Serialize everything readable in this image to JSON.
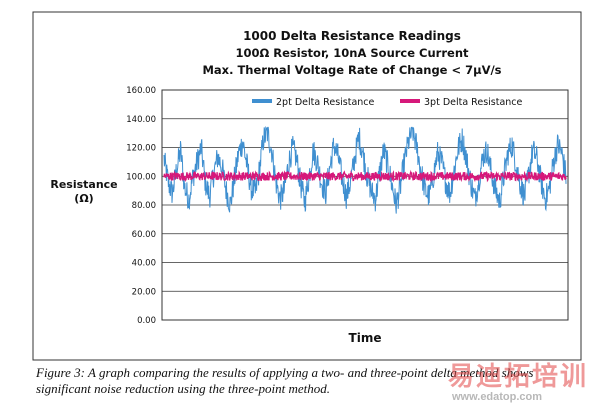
{
  "chart_data": {
    "type": "line",
    "title": "1000 Delta Resistance Readings",
    "subtitle_line1": "100Ω Resistor, 10nA Source Current",
    "subtitle_line2": "Max. Thermal Voltage Rate of Change < 7µV/s",
    "ylabel": "Resistance",
    "ylabel_unit": "(Ω)",
    "xlabel": "Time",
    "ylim": [
      0,
      160
    ],
    "yticks": [
      "0.00",
      "20.00",
      "40.00",
      "60.00",
      "80.00",
      "100.00",
      "120.00",
      "140.00",
      "160.00"
    ],
    "grid": true,
    "legend_position": "top",
    "n_points": 1000,
    "series": [
      {
        "name": "2pt Delta Resistance",
        "color": "#3f8fd0",
        "mean": 100,
        "range": [
          74,
          134
        ],
        "values": [
          112,
          96,
          88,
          104,
          118,
          92,
          84,
          100,
          110,
          120,
          95,
          86,
          102,
          114,
          106,
          90,
          80,
          98,
          116,
          124,
          108,
          92,
          88,
          104,
          126,
          130,
          118,
          96,
          84,
          90,
          108,
          120,
          112,
          94,
          82,
          100,
          118,
          110,
          96,
          88,
          106,
          122,
          114,
          98,
          86,
          96,
          112,
          128,
          116,
          100,
          90,
          84,
          102,
          118,
          108,
          94,
          80,
          92,
          110,
          124,
          132,
          120,
          104,
          90,
          86,
          100,
          116,
          110,
          96,
          88,
          104,
          120,
          126,
          112,
          96,
          84,
          98,
          114,
          118,
          102,
          90,
          82,
          100,
          116,
          122,
          108,
          94,
          86,
          102,
          118,
          112,
          96,
          84,
          92,
          110,
          122,
          116,
          100
        ]
      },
      {
        "name": "3pt Delta Resistance",
        "color": "#d6187a",
        "mean": 100,
        "range": [
          97,
          103
        ]
      }
    ]
  },
  "caption": "Figure 3: A graph comparing the results of applying a two- and three-point delta method shows significant noise reduction using the three-point method.",
  "watermark": {
    "brand_text": "易迪拓培训",
    "url_text": "www.edatop.com"
  }
}
